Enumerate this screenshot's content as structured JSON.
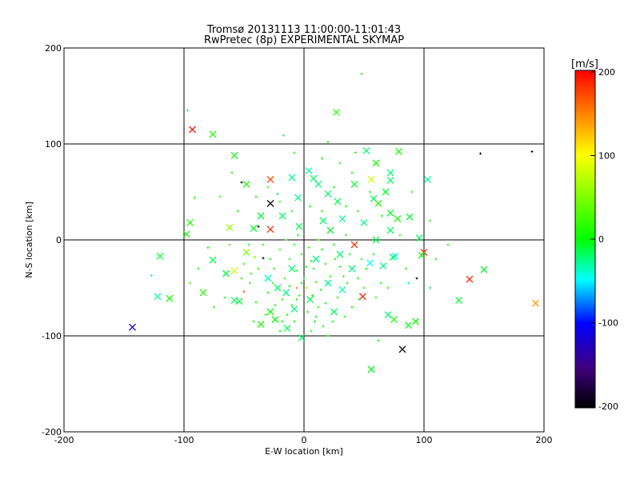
{
  "chart_data": {
    "type": "scatter",
    "title": "Tromsø 20131113 11:00:00-11:01:43",
    "subtitle": "RwPretec (8p) EXPERIMENTAL SKYMAP",
    "xlabel": "E-W location [km]",
    "ylabel": "N-S location [km]",
    "xlim": [
      -200,
      200
    ],
    "ylim": [
      -200,
      200
    ],
    "xticks": [
      -200,
      -100,
      0,
      100,
      200
    ],
    "yticks": [
      -200,
      -100,
      0,
      100,
      200
    ],
    "grid_lines": [
      -100,
      0,
      100
    ],
    "colorbar": {
      "label": "[m/s]",
      "range": [
        -200,
        200
      ],
      "ticks": [
        200,
        100,
        0,
        -100,
        -200
      ],
      "colors": [
        "#ff0000",
        "#ffff00",
        "#00ff00",
        "#00ffff",
        "#0000ff",
        "#400080",
        "#000000"
      ]
    },
    "series": [
      {
        "name": "crosses",
        "marker": "x",
        "points": [
          [
            -93,
            115,
            190
          ],
          [
            -76,
            110,
            15
          ],
          [
            27,
            133,
            15
          ],
          [
            -58,
            88,
            5
          ],
          [
            -48,
            58,
            10
          ],
          [
            -28,
            63,
            170
          ],
          [
            -28,
            38,
            -200
          ],
          [
            -36,
            25,
            -10
          ],
          [
            -62,
            13,
            60
          ],
          [
            -95,
            18,
            10
          ],
          [
            -98,
            6,
            5
          ],
          [
            -28,
            11,
            180
          ],
          [
            -42,
            12,
            -5
          ],
          [
            -120,
            -17,
            -10
          ],
          [
            -76,
            -21,
            -15
          ],
          [
            -58,
            -32,
            80
          ],
          [
            -48,
            -13,
            50
          ],
          [
            -84,
            -55,
            15
          ],
          [
            -122,
            -59,
            -30
          ],
          [
            -112,
            -61,
            5
          ],
          [
            -143,
            -91,
            -110
          ],
          [
            -58,
            -63,
            -20
          ],
          [
            -54,
            -64,
            -10
          ],
          [
            -36,
            -88,
            10
          ],
          [
            -28,
            -75,
            5
          ],
          [
            -14,
            -92,
            -15
          ],
          [
            -24,
            -83,
            0
          ],
          [
            42,
            -5,
            180
          ],
          [
            49,
            -59,
            190
          ],
          [
            100,
            -13,
            185
          ],
          [
            138,
            -41,
            185
          ],
          [
            193,
            -66,
            140
          ],
          [
            150,
            -31,
            -5
          ],
          [
            129,
            -63,
            -10
          ],
          [
            93,
            -85,
            5
          ],
          [
            87,
            -89,
            -5
          ],
          [
            82,
            -114,
            -200
          ],
          [
            56,
            -135,
            -5
          ],
          [
            75,
            -83,
            10
          ],
          [
            70,
            -78,
            -20
          ],
          [
            96,
            2,
            -15
          ],
          [
            74,
            -18,
            -15
          ],
          [
            55,
            -24,
            -50
          ],
          [
            66,
            -27,
            -25
          ],
          [
            76,
            -17,
            -45
          ],
          [
            98,
            -16,
            5
          ],
          [
            103,
            63,
            -30
          ],
          [
            72,
            70,
            -25
          ],
          [
            79,
            92,
            5
          ],
          [
            52,
            93,
            -20
          ],
          [
            56,
            63,
            80
          ],
          [
            60,
            80,
            10
          ],
          [
            72,
            62,
            -20
          ],
          [
            88,
            24,
            -10
          ],
          [
            78,
            22,
            5
          ],
          [
            72,
            28,
            -5
          ],
          [
            58,
            43,
            -15
          ],
          [
            62,
            38,
            10
          ],
          [
            68,
            50,
            -10
          ],
          [
            50,
            18,
            -25
          ],
          [
            72,
            10,
            -20
          ],
          [
            60,
            0,
            -15
          ],
          [
            42,
            58,
            -10
          ],
          [
            20,
            48,
            -20
          ],
          [
            28,
            40,
            -15
          ],
          [
            12,
            58,
            -25
          ],
          [
            4,
            72,
            -30
          ],
          [
            8,
            64,
            -20
          ],
          [
            -10,
            65,
            -30
          ],
          [
            -5,
            44,
            -25
          ],
          [
            16,
            20,
            -20
          ],
          [
            32,
            22,
            -30
          ],
          [
            22,
            10,
            -10
          ],
          [
            -4,
            14,
            -15
          ],
          [
            -18,
            25,
            -20
          ],
          [
            10,
            -20,
            -25
          ],
          [
            30,
            -15,
            -20
          ],
          [
            -10,
            -30,
            -25
          ],
          [
            20,
            -45,
            -30
          ],
          [
            -22,
            -50,
            -20
          ],
          [
            5,
            -62,
            -15
          ],
          [
            -15,
            -55,
            -25
          ],
          [
            32,
            -52,
            -35
          ],
          [
            25,
            -75,
            -20
          ],
          [
            -8,
            -72,
            -25
          ],
          [
            -30,
            -40,
            -35
          ],
          [
            -65,
            -35,
            -10
          ],
          [
            40,
            -30,
            -25
          ],
          [
            -2,
            -102,
            -20
          ]
        ]
      },
      {
        "name": "dots",
        "marker": "+",
        "points": [
          [
            48,
            173,
            20
          ],
          [
            -97,
            135,
            -10
          ],
          [
            -17,
            109,
            -20
          ],
          [
            20,
            102,
            0
          ],
          [
            -8,
            91,
            10
          ],
          [
            43,
            91,
            5
          ],
          [
            147,
            90,
            -200
          ],
          [
            190,
            92,
            -200
          ],
          [
            -52,
            60,
            -200
          ],
          [
            -22,
            48,
            -10
          ],
          [
            -38,
            14,
            -200
          ],
          [
            -46,
            -5,
            -10
          ],
          [
            -34,
            -19,
            -200
          ],
          [
            -50,
            -54,
            170
          ],
          [
            -41,
            -18,
            50
          ],
          [
            -127,
            -37,
            -30
          ],
          [
            -95,
            -45,
            30
          ],
          [
            -91,
            44,
            5
          ],
          [
            -80,
            -8,
            5
          ],
          [
            -62,
            -5,
            20
          ],
          [
            105,
            20,
            15
          ],
          [
            105,
            -50,
            -10
          ],
          [
            94,
            -40,
            -200
          ],
          [
            87,
            -45,
            -40
          ],
          [
            62,
            -105,
            0
          ],
          [
            2,
            -50,
            120
          ],
          [
            -6,
            -50,
            150
          ],
          [
            0,
            -40,
            -10
          ],
          [
            8,
            -30,
            -5
          ],
          [
            -12,
            -20,
            10
          ],
          [
            -20,
            -10,
            20
          ],
          [
            15,
            -10,
            5
          ],
          [
            25,
            -5,
            10
          ],
          [
            35,
            5,
            15
          ],
          [
            -5,
            5,
            5
          ],
          [
            -15,
            0,
            15
          ],
          [
            12,
            0,
            20
          ],
          [
            -25,
            -30,
            10
          ],
          [
            -30,
            -55,
            5
          ],
          [
            -18,
            -62,
            10
          ],
          [
            -10,
            -68,
            15
          ],
          [
            3,
            -75,
            5
          ],
          [
            10,
            -80,
            -5
          ],
          [
            18,
            -66,
            0
          ],
          [
            28,
            -60,
            10
          ],
          [
            36,
            -45,
            -5
          ],
          [
            45,
            -40,
            5
          ],
          [
            40,
            -70,
            0
          ],
          [
            50,
            -50,
            10
          ],
          [
            -40,
            -65,
            5
          ],
          [
            -45,
            -45,
            15
          ],
          [
            -38,
            -30,
            20
          ],
          [
            -50,
            -25,
            10
          ],
          [
            -8,
            -85,
            5
          ],
          [
            -20,
            -95,
            0
          ],
          [
            6,
            -95,
            15
          ],
          [
            16,
            -90,
            5
          ],
          [
            24,
            -85,
            -10
          ],
          [
            -2,
            -15,
            10
          ],
          [
            6,
            -22,
            5
          ],
          [
            -16,
            -40,
            15
          ],
          [
            -4,
            -58,
            10
          ],
          [
            14,
            -52,
            5
          ],
          [
            22,
            -38,
            20
          ],
          [
            30,
            -28,
            10
          ],
          [
            -28,
            -20,
            5
          ],
          [
            -6,
            -32,
            15
          ],
          [
            2,
            -28,
            0
          ],
          [
            10,
            -44,
            10
          ],
          [
            -12,
            -48,
            5
          ],
          [
            -24,
            -68,
            15
          ],
          [
            -32,
            -78,
            10
          ],
          [
            20,
            -100,
            5
          ],
          [
            -42,
            -85,
            0
          ],
          [
            34,
            -80,
            10
          ],
          [
            46,
            -62,
            5
          ],
          [
            52,
            -30,
            0
          ],
          [
            58,
            -15,
            10
          ],
          [
            64,
            -45,
            5
          ],
          [
            15,
            30,
            15
          ],
          [
            25,
            55,
            10
          ],
          [
            5,
            35,
            5
          ],
          [
            -10,
            30,
            10
          ],
          [
            -20,
            40,
            20
          ],
          [
            35,
            35,
            5
          ],
          [
            45,
            30,
            15
          ],
          [
            55,
            50,
            10
          ],
          [
            40,
            70,
            5
          ],
          [
            30,
            80,
            10
          ],
          [
            15,
            85,
            5
          ],
          [
            -30,
            55,
            15
          ],
          [
            -40,
            45,
            10
          ],
          [
            -55,
            30,
            5
          ],
          [
            -70,
            45,
            20
          ],
          [
            -60,
            70,
            10
          ],
          [
            65,
            25,
            5
          ],
          [
            80,
            5,
            15
          ],
          [
            85,
            -30,
            5
          ],
          [
            -8,
            -5,
            10
          ],
          [
            4,
            -8,
            15
          ],
          [
            -2,
            -45,
            5
          ],
          [
            7,
            -58,
            10
          ],
          [
            -14,
            -78,
            5
          ],
          [
            12,
            -70,
            15
          ],
          [
            -26,
            -45,
            20
          ],
          [
            18,
            -25,
            10
          ],
          [
            26,
            -20,
            5
          ],
          [
            -34,
            -5,
            10
          ],
          [
            33,
            -38,
            15
          ],
          [
            -6,
            -62,
            5
          ],
          [
            -18,
            -85,
            10
          ],
          [
            9,
            -85,
            5
          ],
          [
            38,
            -15,
            10
          ],
          [
            48,
            -20,
            5
          ],
          [
            -44,
            -35,
            15
          ],
          [
            -52,
            -40,
            5
          ],
          [
            60,
            -60,
            10
          ],
          [
            70,
            -50,
            5
          ],
          [
            -66,
            -60,
            10
          ],
          [
            -75,
            -70,
            5
          ],
          [
            -88,
            -30,
            10
          ],
          [
            110,
            -20,
            5
          ],
          [
            120,
            -5,
            10
          ],
          [
            90,
            50,
            5
          ]
        ]
      }
    ]
  }
}
